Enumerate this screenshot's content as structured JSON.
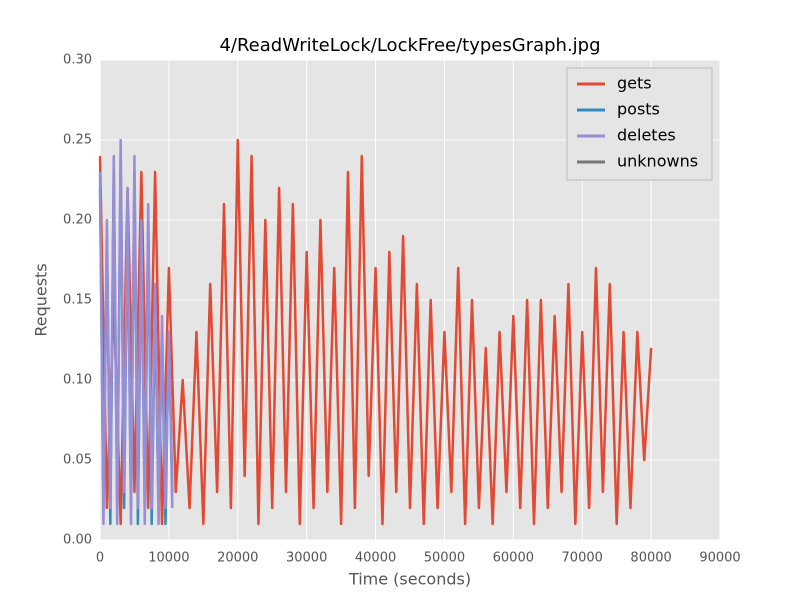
{
  "chart_data": {
    "type": "line",
    "title": "4/ReadWriteLock/LockFree/typesGraph.jpg",
    "x_label": "Time (seconds)",
    "y_label": "Requests",
    "xlim": [
      0,
      90000
    ],
    "xticks": [
      0,
      10000,
      20000,
      30000,
      40000,
      50000,
      60000,
      70000,
      80000,
      90000
    ],
    "ylim": [
      0,
      0.3
    ],
    "yticks": [
      {
        "value": 0,
        "label": "0.00"
      },
      {
        "value": 0.05,
        "label": "0.05"
      },
      {
        "value": 0.1,
        "label": "0.10"
      },
      {
        "value": 0.15,
        "label": "0.15"
      },
      {
        "value": 0.2,
        "label": "0.20"
      },
      {
        "value": 0.25,
        "label": "0.25"
      },
      {
        "value": 0.3,
        "label": "0.30"
      }
    ],
    "grid": true,
    "legend": "upper right",
    "series": [
      {
        "name": "gets",
        "color": "#e24a33",
        "x": [
          0,
          1000,
          2000,
          3000,
          4000,
          5000,
          6000,
          7000,
          8000,
          9000,
          10000,
          11000,
          12000,
          13000,
          14000,
          15000,
          16000,
          17000,
          18000,
          19000,
          20000,
          21000,
          22000,
          23000,
          24000,
          25000,
          26000,
          27000,
          28000,
          29000,
          30000,
          31000,
          32000,
          33000,
          34000,
          35000,
          36000,
          37000,
          38000,
          39000,
          40000,
          41000,
          42000,
          43000,
          44000,
          45000,
          46000,
          47000,
          48000,
          49000,
          50000,
          51000,
          52000,
          53000,
          54000,
          55000,
          56000,
          57000,
          58000,
          59000,
          60000,
          61000,
          62000,
          63000,
          64000,
          65000,
          66000,
          67000,
          68000,
          69000,
          70000,
          71000,
          72000,
          73000,
          74000,
          75000,
          76000,
          77000,
          78000,
          79000,
          80000
        ],
        "values": [
          0.24,
          0.02,
          0.15,
          0.01,
          0.22,
          0.03,
          0.23,
          0.02,
          0.23,
          0.01,
          0.17,
          0.03,
          0.1,
          0.02,
          0.13,
          0.01,
          0.16,
          0.03,
          0.21,
          0.02,
          0.25,
          0.04,
          0.24,
          0.01,
          0.2,
          0.02,
          0.22,
          0.03,
          0.21,
          0.01,
          0.18,
          0.02,
          0.2,
          0.03,
          0.17,
          0.01,
          0.23,
          0.02,
          0.24,
          0.04,
          0.17,
          0.01,
          0.18,
          0.03,
          0.19,
          0.02,
          0.16,
          0.01,
          0.15,
          0.02,
          0.13,
          0.03,
          0.17,
          0.01,
          0.15,
          0.02,
          0.12,
          0.01,
          0.13,
          0.03,
          0.14,
          0.02,
          0.15,
          0.01,
          0.15,
          0.02,
          0.14,
          0.03,
          0.16,
          0.01,
          0.13,
          0.02,
          0.17,
          0.03,
          0.16,
          0.01,
          0.13,
          0.02,
          0.13,
          0.05,
          0.12
        ]
      },
      {
        "name": "posts",
        "color": "#348abd",
        "x": [
          0,
          500,
          1000,
          1500,
          2000,
          2500,
          3000,
          3500,
          4000,
          4500,
          5000,
          5500,
          6000,
          6500,
          7000,
          7500,
          8000,
          8500,
          9000,
          9500,
          10000,
          10500
        ],
        "values": [
          0.22,
          0.02,
          0.19,
          0.01,
          0.23,
          0.02,
          0.24,
          0.02,
          0.21,
          0.02,
          0.23,
          0.01,
          0.19,
          0.02,
          0.2,
          0.01,
          0.15,
          0.02,
          0.13,
          0.01,
          0.13,
          0.03
        ]
      },
      {
        "name": "deletes",
        "color": "#988ed5",
        "x": [
          0,
          500,
          1000,
          1500,
          2000,
          2500,
          3000,
          3500,
          4000,
          4500,
          5000,
          5500,
          6000,
          6500,
          7000,
          7500,
          8000,
          8500,
          9000,
          9500,
          10000,
          10500
        ],
        "values": [
          0.23,
          0.01,
          0.2,
          0.02,
          0.24,
          0.01,
          0.25,
          0.03,
          0.22,
          0.01,
          0.24,
          0.02,
          0.2,
          0.01,
          0.21,
          0.02,
          0.16,
          0.01,
          0.14,
          0.02,
          0.13,
          0.02
        ]
      },
      {
        "name": "unknowns",
        "color": "#777777",
        "x": [],
        "values": []
      }
    ]
  }
}
